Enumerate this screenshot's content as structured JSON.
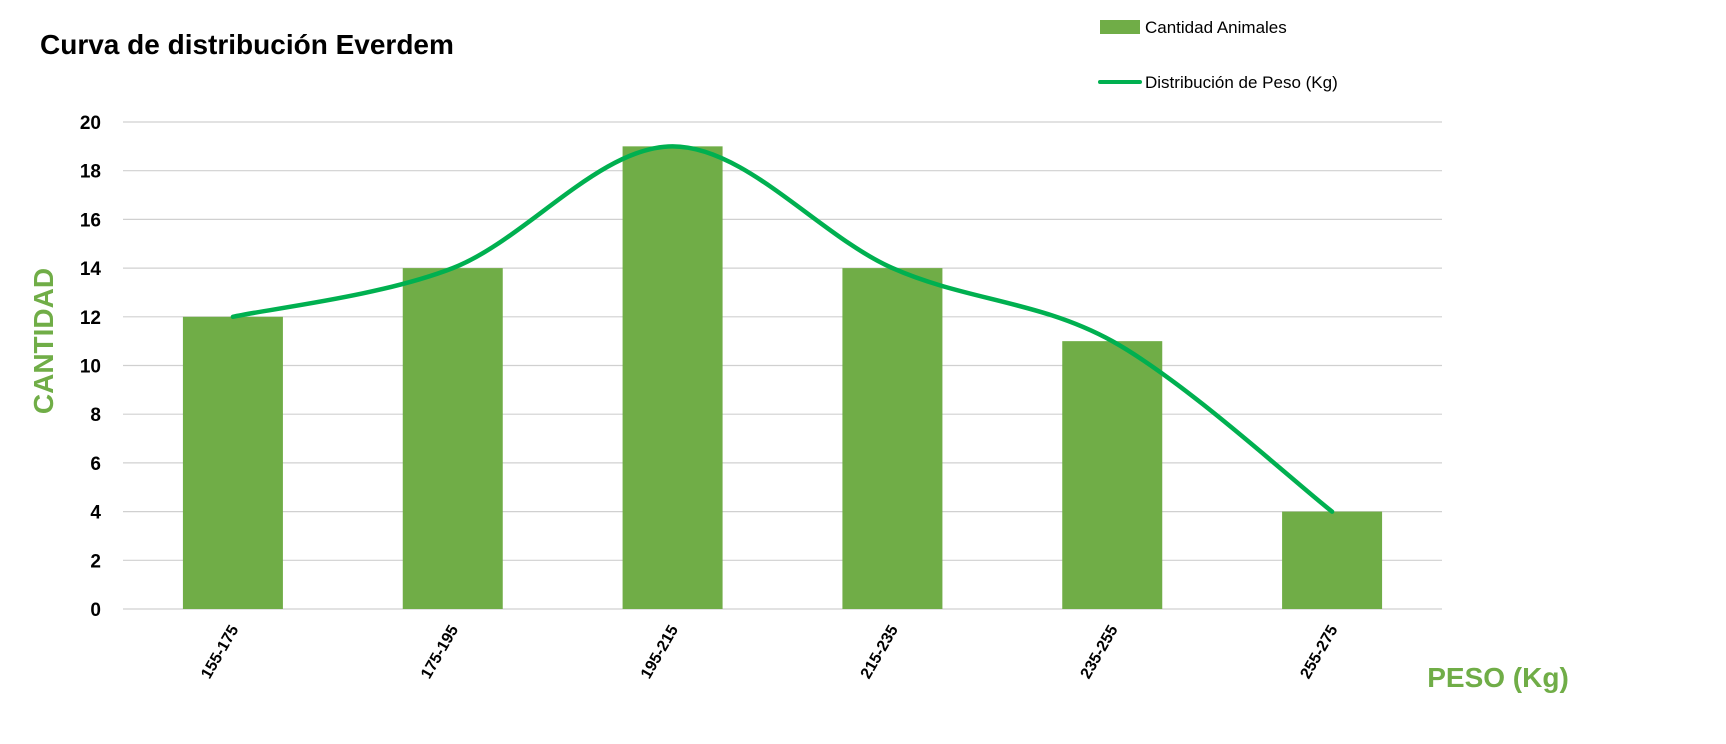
{
  "chart_data": {
    "type": "bar",
    "title": "Curva de distribución Everdem",
    "xlabel": "PESO (Kg)",
    "ylabel": "CANTIDAD",
    "categories": [
      "155-175",
      "175-195",
      "195-215",
      "215-235",
      "235-255",
      "255-275"
    ],
    "series": [
      {
        "name": "Cantidad Animales",
        "type": "bar",
        "values": [
          12,
          14,
          19,
          14,
          11,
          4
        ],
        "color": "#70ad47"
      },
      {
        "name": "Distribución de Peso (Kg)",
        "type": "line",
        "smooth": true,
        "values": [
          12,
          14,
          19,
          14,
          11,
          4
        ],
        "color": "#00b050"
      }
    ],
    "ylim": [
      0,
      20
    ],
    "yticks": [
      0,
      2,
      4,
      6,
      8,
      10,
      12,
      14,
      16,
      18,
      20
    ],
    "grid": true,
    "legend_position": "top-right"
  },
  "colors": {
    "axis_title": "#70ad47",
    "bar": "#70ad47",
    "line": "#00b050"
  }
}
